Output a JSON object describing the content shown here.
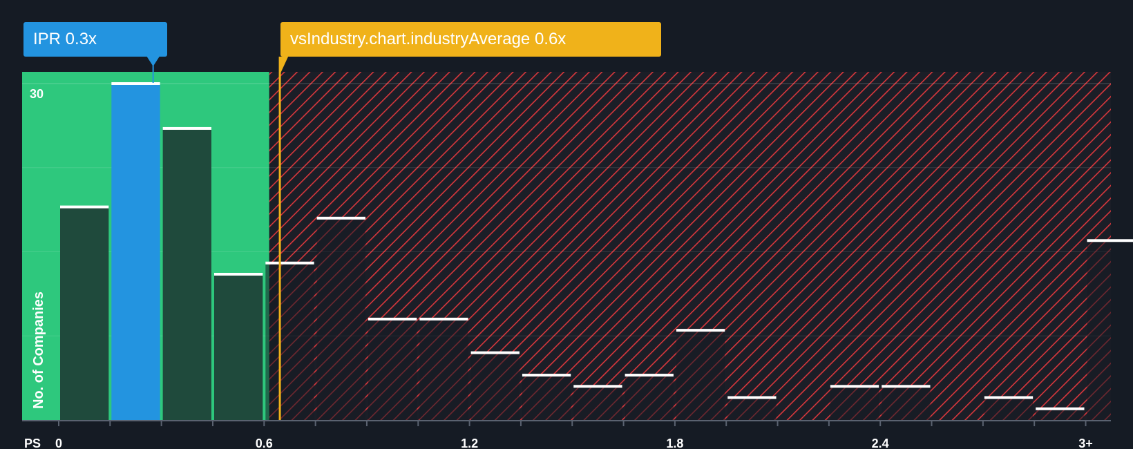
{
  "company_label": "IPR 0.3x",
  "industry_label": "vsIndustry.chart.industryAverage 0.6x",
  "colors": {
    "background": "#151b24",
    "fair_zone": "#2ec87d",
    "company_bar": "#2394e0",
    "bar": "#1f4a3c",
    "overvalued_hatch": "#d9373c",
    "industry_line": "#f0b21a"
  },
  "chart_data": {
    "type": "bar",
    "title": "",
    "xlabel": "PS",
    "ylabel": "No. of Companies",
    "x_ticks": [
      "0",
      "0.6",
      "1.2",
      "1.8",
      "2.4",
      "3+"
    ],
    "x_tick_values": [
      0,
      0.6,
      1.2,
      1.8,
      2.4,
      3.0
    ],
    "y_ticks": [
      30
    ],
    "ylim": [
      0,
      31
    ],
    "xlim": [
      0,
      3.09
    ],
    "bin_width": 0.15,
    "bins": [
      {
        "start": 0.0,
        "value": 19
      },
      {
        "start": 0.15,
        "value": 30,
        "highlight": true
      },
      {
        "start": 0.3,
        "value": 26
      },
      {
        "start": 0.45,
        "value": 13
      },
      {
        "start": 0.6,
        "value": 14
      },
      {
        "start": 0.75,
        "value": 18
      },
      {
        "start": 0.9,
        "value": 9
      },
      {
        "start": 1.05,
        "value": 9
      },
      {
        "start": 1.2,
        "value": 6
      },
      {
        "start": 1.35,
        "value": 4
      },
      {
        "start": 1.5,
        "value": 3
      },
      {
        "start": 1.65,
        "value": 4
      },
      {
        "start": 1.8,
        "value": 8
      },
      {
        "start": 1.95,
        "value": 2
      },
      {
        "start": 2.1,
        "value": 0
      },
      {
        "start": 2.25,
        "value": 3
      },
      {
        "start": 2.4,
        "value": 3
      },
      {
        "start": 2.55,
        "value": 0
      },
      {
        "start": 2.7,
        "value": 2
      },
      {
        "start": 2.85,
        "value": 1
      },
      {
        "start": 3.0,
        "value": 16
      }
    ],
    "company_value": 0.3,
    "industry_average": 0.65,
    "fair_value_limit": 0.615
  }
}
